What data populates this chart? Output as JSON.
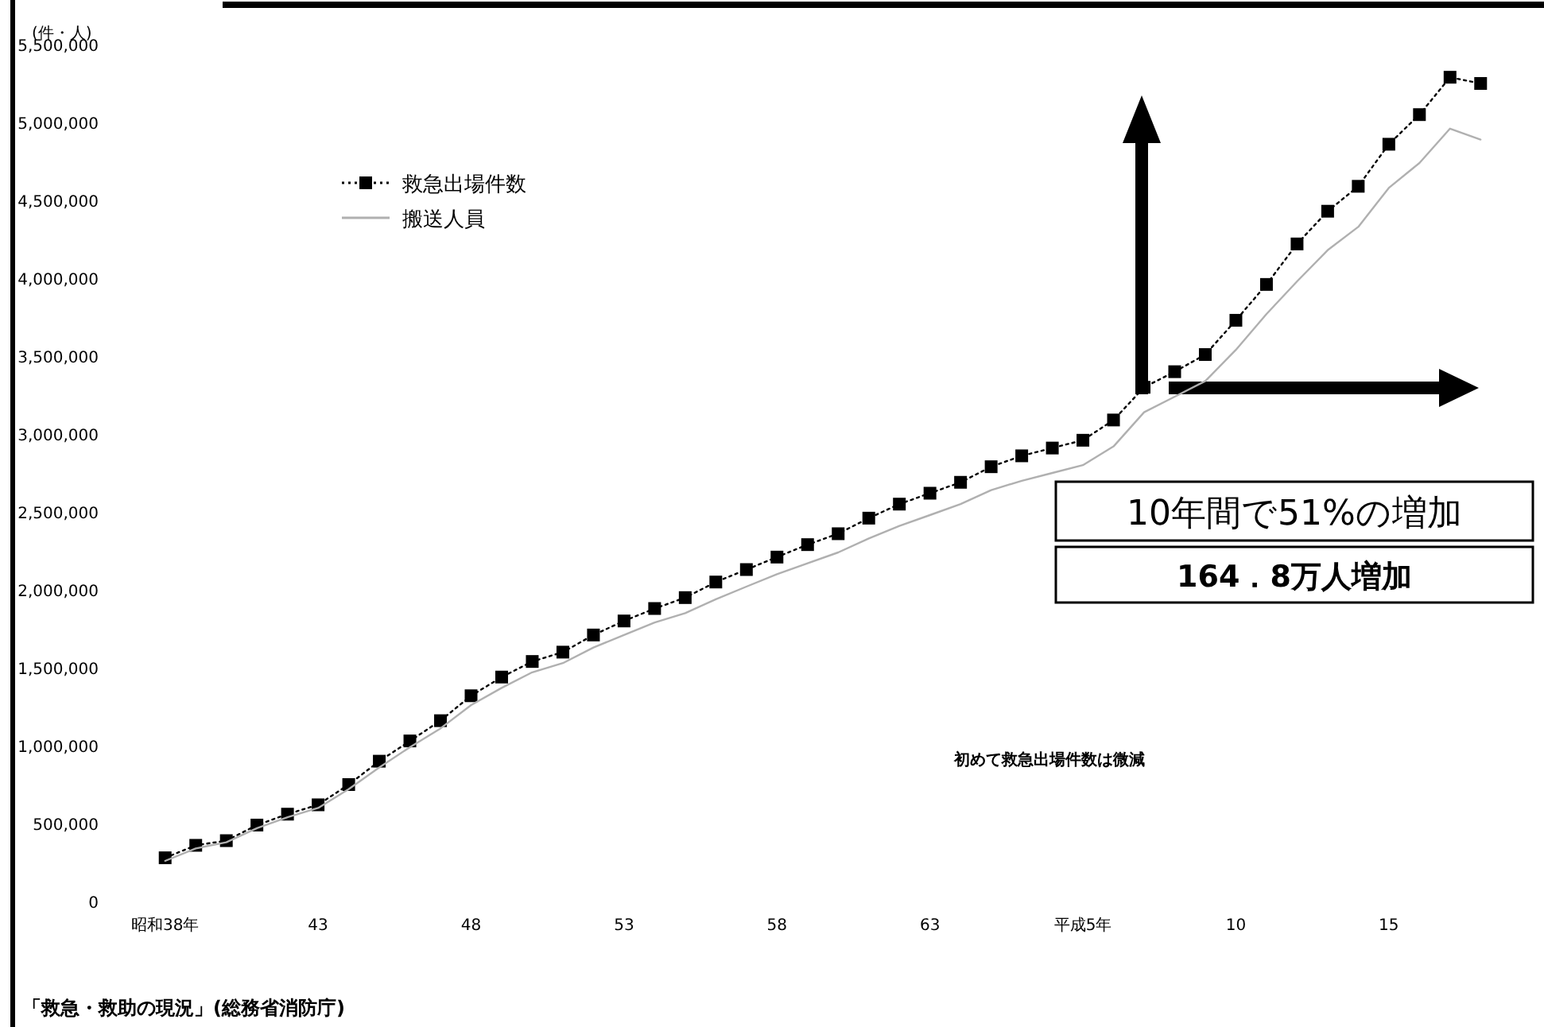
{
  "chart_data": {
    "type": "line",
    "ylabel": "(件・人)",
    "categories": [
      "昭和38年",
      null,
      null,
      null,
      null,
      "43",
      null,
      null,
      null,
      null,
      "48",
      null,
      null,
      null,
      null,
      "53",
      null,
      null,
      null,
      null,
      "58",
      null,
      null,
      null,
      null,
      "63",
      null,
      null,
      null,
      null,
      "平成5年",
      null,
      null,
      null,
      null,
      "10",
      null,
      null,
      null,
      null,
      "15",
      null,
      null,
      null
    ],
    "series": [
      {
        "name": "救急出場件数",
        "color": "#000000",
        "marker": "square",
        "line_style": "dotted",
        "values": [
          280000,
          360000,
          390000,
          490000,
          560000,
          620000,
          750000,
          900000,
          1030000,
          1160000,
          1320000,
          1440000,
          1540000,
          1600000,
          1710000,
          1800000,
          1880000,
          1950000,
          2050000,
          2130000,
          2210000,
          2290000,
          2360000,
          2460000,
          2550000,
          2620000,
          2690000,
          2790000,
          2860000,
          2910000,
          2960000,
          3090000,
          3300000,
          3400000,
          3510000,
          3730000,
          3960000,
          4220000,
          4430000,
          4590000,
          4860000,
          5050000,
          5290000,
          5250000
        ]
      },
      {
        "name": "搬送人員",
        "color": "#b0b0b0",
        "marker": "none",
        "line_style": "solid",
        "values": [
          260000,
          340000,
          380000,
          470000,
          540000,
          600000,
          720000,
          860000,
          990000,
          1110000,
          1260000,
          1370000,
          1470000,
          1530000,
          1630000,
          1710000,
          1790000,
          1850000,
          1940000,
          2020000,
          2100000,
          2170000,
          2240000,
          2330000,
          2410000,
          2480000,
          2550000,
          2640000,
          2700000,
          2750000,
          2800000,
          2920000,
          3140000,
          3240000,
          3340000,
          3540000,
          3770000,
          3980000,
          4180000,
          4330000,
          4580000,
          4740000,
          4960000,
          4890000
        ]
      }
    ],
    "ylim": [
      0,
      5500000
    ],
    "yticks": [
      0,
      {
        "value": 500000,
        "label": "500,000"
      },
      {
        "value": 1000000,
        "label": "1,000,000"
      },
      {
        "value": 1500000,
        "label": "1,500,000"
      },
      {
        "value": 2000000,
        "label": "2,000,000"
      },
      {
        "value": 2500000,
        "label": "2,500,000"
      },
      {
        "value": 3000000,
        "label": "3,000,000"
      },
      {
        "value": 3500000,
        "label": "3,500,000"
      },
      {
        "value": 4000000,
        "label": "4,000,000"
      },
      {
        "value": 4500000,
        "label": "4,500,000"
      },
      {
        "value": 5000000,
        "label": "5,000,000"
      },
      {
        "value": 5500000,
        "label": "5,500,000"
      }
    ],
    "grid": false,
    "legend": "top left",
    "annotations": [
      "10年間で51%の増加",
      "164．8万人増加",
      "初めて救急出場件数は微減",
      "「救急・救助の現況」(総務省消防庁)"
    ]
  }
}
